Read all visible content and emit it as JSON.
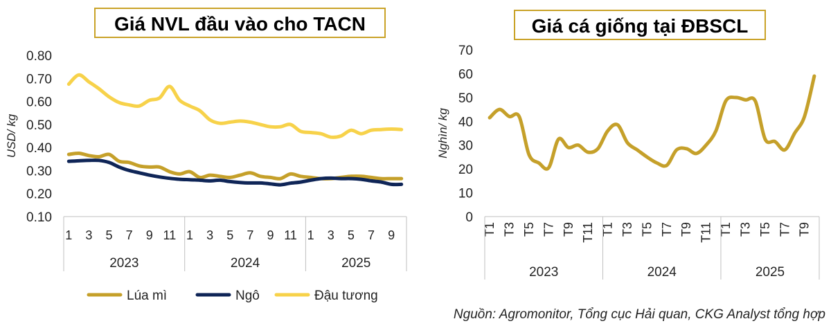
{
  "source_note": "Nguồn: Agromonitor, Tổng cục Hải quan, CKG Analyst tổng hợp",
  "colors": {
    "lua_mi": "#c5a02a",
    "ngo": "#0f2557",
    "dau_tuong": "#f7d24a",
    "title_border": "#c9a227",
    "axis": "#bfbfbf"
  },
  "chart_data": [
    {
      "type": "line",
      "title": "Giá NVL đầu vào cho TACN",
      "ylabel": "USD/ kg",
      "xlabel": "",
      "ylim": [
        0.1,
        0.8
      ],
      "yticks": [
        "0.10",
        "0.20",
        "0.30",
        "0.40",
        "0.50",
        "0.60",
        "0.70",
        "0.80"
      ],
      "x_tick_labels": [
        "1",
        "3",
        "5",
        "7",
        "9",
        "11",
        "1",
        "3",
        "5",
        "7",
        "9",
        "11",
        "1",
        "3",
        "5",
        "7",
        "9"
      ],
      "years": [
        "2023",
        "2024",
        "2025"
      ],
      "months_per_year": [
        12,
        12,
        10
      ],
      "legend": [
        "Lúa mì",
        "Ngô",
        "Đậu tương"
      ],
      "series": [
        {
          "name": "Lúa mì",
          "values": [
            0.37,
            0.375,
            0.365,
            0.36,
            0.37,
            0.34,
            0.335,
            0.32,
            0.315,
            0.315,
            0.295,
            0.285,
            0.295,
            0.27,
            0.28,
            0.275,
            0.27,
            0.28,
            0.29,
            0.275,
            0.27,
            0.265,
            0.285,
            0.275,
            0.27,
            0.265,
            0.265,
            0.27,
            0.275,
            0.275,
            0.27,
            0.265,
            0.265,
            0.265
          ]
        },
        {
          "name": "Ngô",
          "values": [
            0.34,
            0.342,
            0.344,
            0.344,
            0.335,
            0.315,
            0.3,
            0.29,
            0.28,
            0.272,
            0.266,
            0.262,
            0.26,
            0.258,
            0.255,
            0.258,
            0.252,
            0.248,
            0.246,
            0.246,
            0.242,
            0.238,
            0.245,
            0.25,
            0.258,
            0.265,
            0.267,
            0.265,
            0.265,
            0.262,
            0.255,
            0.25,
            0.24,
            0.24
          ]
        },
        {
          "name": "Đậu tương",
          "values": [
            0.675,
            0.715,
            0.685,
            0.655,
            0.62,
            0.595,
            0.585,
            0.58,
            0.605,
            0.615,
            0.665,
            0.605,
            0.58,
            0.56,
            0.52,
            0.505,
            0.51,
            0.515,
            0.51,
            0.5,
            0.49,
            0.49,
            0.5,
            0.47,
            0.465,
            0.46,
            0.445,
            0.45,
            0.475,
            0.46,
            0.475,
            0.478,
            0.48,
            0.478
          ]
        }
      ]
    },
    {
      "type": "line",
      "title": "Giá cá giống tại ĐBSCL",
      "ylabel": "Nghìn/ kg",
      "xlabel": "",
      "ylim": [
        0,
        70
      ],
      "yticks": [
        "0",
        "10",
        "20",
        "30",
        "40",
        "50",
        "60",
        "70"
      ],
      "x_tick_labels": [
        "T1",
        "T3",
        "T5",
        "T7",
        "T9",
        "T11",
        "T1",
        "T3",
        "T5",
        "T7",
        "T9",
        "T11",
        "T1",
        "T3",
        "T5",
        "T7",
        "T9"
      ],
      "years": [
        "2023",
        "2024",
        "2025"
      ],
      "months_per_year": [
        12,
        12,
        10
      ],
      "series": [
        {
          "name": "Giá cá giống",
          "values": [
            41.5,
            45,
            42,
            42,
            26,
            22.5,
            20.5,
            32.5,
            29,
            30,
            27,
            28.5,
            36,
            38.5,
            31,
            28,
            25,
            22.5,
            21.5,
            28,
            28.5,
            26.5,
            30,
            36,
            48.5,
            50,
            49,
            48.5,
            32.5,
            31.5,
            28,
            35,
            42,
            59
          ]
        }
      ]
    }
  ]
}
